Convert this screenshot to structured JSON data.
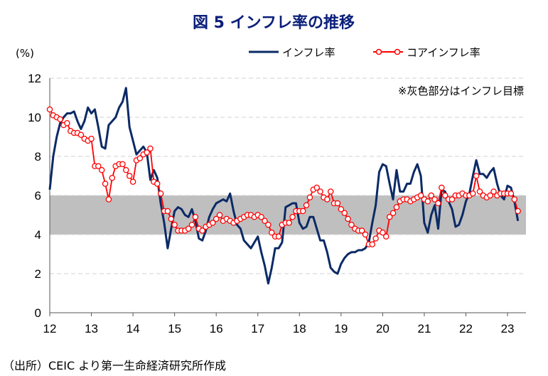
{
  "chart_data": {
    "type": "line",
    "title": "図 5  インフレ率の推移",
    "ylabel": "(%)",
    "xlabel": "",
    "ylim": [
      0,
      12
    ],
    "yticks": [
      0,
      2,
      4,
      6,
      8,
      10,
      12
    ],
    "xticks": [
      "12",
      "13",
      "14",
      "15",
      "16",
      "17",
      "18",
      "19",
      "20",
      "21",
      "22",
      "23"
    ],
    "x_start": "2012-01",
    "x_frequency": "monthly",
    "grid": true,
    "legend_position": "top-right",
    "target_band": {
      "low": 4,
      "high": 6,
      "color": "#bfbfbf"
    },
    "annotation": "※灰色部分はインフレ目標",
    "series": [
      {
        "name": "インフレ率",
        "color": "#0b2a66",
        "values": [
          6.3,
          8.0,
          9.0,
          9.7,
          10.0,
          10.2,
          10.2,
          10.3,
          9.8,
          9.4,
          9.8,
          10.5,
          10.2,
          10.4,
          9.5,
          8.5,
          8.4,
          9.6,
          9.8,
          10.0,
          10.5,
          10.8,
          11.5,
          9.5,
          8.8,
          8.1,
          8.3,
          8.5,
          8.2,
          6.8,
          7.3,
          6.9,
          5.6,
          4.6,
          3.3,
          4.3,
          5.2,
          5.4,
          5.3,
          5.0,
          4.9,
          5.3,
          4.7,
          3.8,
          3.7,
          4.2,
          4.9,
          5.3,
          5.6,
          5.7,
          5.8,
          5.7,
          6.1,
          5.2,
          4.5,
          4.3,
          3.7,
          3.5,
          3.3,
          3.6,
          3.9,
          3.1,
          2.4,
          1.5,
          2.3,
          3.3,
          3.3,
          3.6,
          5.4,
          5.5,
          5.6,
          5.6,
          4.6,
          4.3,
          4.4,
          4.9,
          4.9,
          4.3,
          3.7,
          3.7,
          3.1,
          2.3,
          2.1,
          2.0,
          2.5,
          2.8,
          3.0,
          3.1,
          3.1,
          3.2,
          3.2,
          3.3,
          3.6,
          4.6,
          5.5,
          7.2,
          7.6,
          7.5,
          6.6,
          5.8,
          7.3,
          6.2,
          6.2,
          6.6,
          6.6,
          7.2,
          7.6,
          7.0,
          4.6,
          4.1,
          5.0,
          5.5,
          4.3,
          6.3,
          6.2,
          5.7,
          5.3,
          4.4,
          4.5,
          5.0,
          5.7,
          6.1,
          7.0,
          7.8,
          7.1,
          7.1,
          6.9,
          7.2,
          7.4,
          6.6,
          6.0,
          5.8,
          6.5,
          6.4,
          5.7,
          4.7
        ]
      },
      {
        "name": "コアインフレ率",
        "color": "#ff0000",
        "values": [
          10.4,
          10.1,
          10.0,
          9.9,
          9.6,
          9.7,
          9.3,
          9.2,
          9.2,
          9.1,
          8.9,
          8.8,
          8.9,
          7.5,
          7.5,
          7.3,
          6.6,
          5.8,
          6.9,
          7.5,
          7.6,
          7.6,
          7.3,
          7.0,
          6.7,
          7.8,
          7.9,
          8.1,
          8.2,
          8.4,
          6.7,
          6.6,
          6.1,
          5.2,
          5.2,
          4.8,
          4.5,
          4.2,
          4.2,
          4.2,
          4.3,
          4.5,
          4.9,
          4.3,
          4.2,
          4.4,
          4.5,
          4.6,
          4.8,
          5.0,
          4.7,
          4.8,
          4.7,
          4.6,
          4.7,
          4.8,
          4.9,
          5.0,
          5.0,
          4.9,
          5.0,
          4.9,
          4.7,
          4.5,
          4.1,
          3.9,
          3.9,
          4.5,
          4.6,
          4.6,
          4.9,
          5.2,
          5.2,
          5.2,
          5.5,
          5.9,
          6.3,
          6.4,
          6.2,
          5.9,
          5.8,
          6.2,
          5.6,
          5.6,
          5.3,
          5.1,
          4.8,
          4.5,
          4.3,
          4.2,
          4.2,
          4.0,
          3.5,
          3.5,
          3.8,
          4.2,
          4.1,
          3.9,
          4.9,
          5.1,
          5.4,
          5.7,
          5.8,
          5.8,
          5.7,
          5.8,
          5.9,
          6.0,
          5.8,
          5.7,
          6.0,
          5.8,
          5.6,
          6.4,
          6.0,
          5.8,
          5.8,
          6.0,
          6.0,
          6.1,
          6.0,
          6.0,
          6.1,
          7.0,
          6.2,
          6.0,
          5.9,
          6.0,
          6.2,
          6.0,
          6.1,
          6.1,
          6.1,
          6.1,
          5.8,
          5.2
        ]
      }
    ]
  },
  "source": "（出所）CEIC より第一生命経済研究所作成"
}
